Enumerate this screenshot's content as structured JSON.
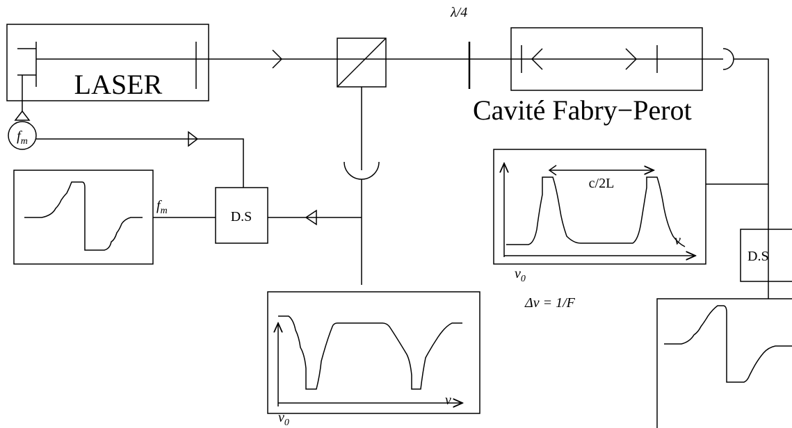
{
  "laser": "LASER",
  "quarter_wave": "λ/4",
  "cavity": "Cavité Fabry−Perot",
  "modulator": {
    "symbol": "f",
    "sub": "m"
  },
  "modulation_label": {
    "symbol": "f",
    "sub": "m"
  },
  "demod_left": "D.S",
  "demod_right": "D.S",
  "transmission_scope": {
    "spacing": "c/2L",
    "axis": "ν",
    "origin": {
      "symbol": "ν",
      "sub": "0"
    },
    "width": "Δν = 1/F"
  },
  "reflection_scope": {
    "axis": "ν",
    "origin": {
      "symbol": "ν",
      "sub": "0"
    }
  }
}
